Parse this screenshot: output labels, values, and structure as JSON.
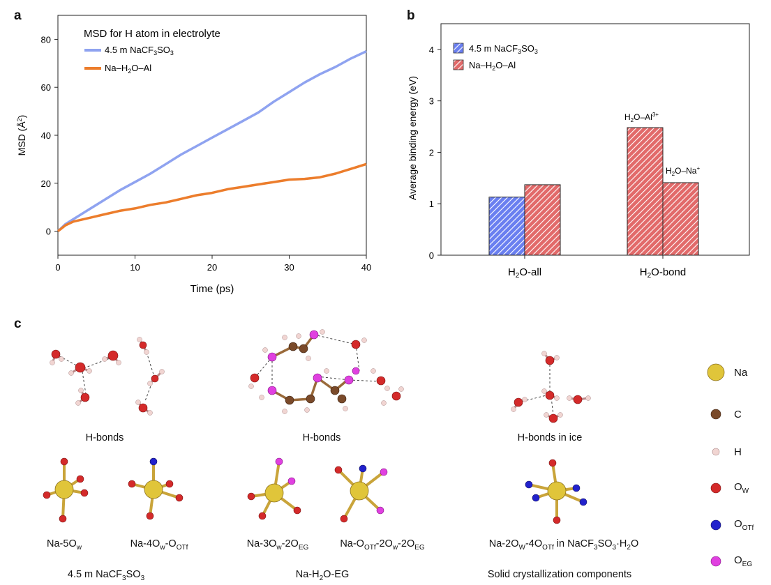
{
  "panels": {
    "a": "a",
    "b": "b",
    "c": "c"
  },
  "chart_data": [
    {
      "id": "a",
      "type": "line",
      "title": "MSD for H atom in electrolyte",
      "xlabel": "Time (ps)",
      "ylabel": "MSD (Å²)",
      "xlim": [
        0,
        40
      ],
      "ylim": [
        -10,
        90
      ],
      "xticks": [
        0,
        10,
        20,
        30,
        40
      ],
      "yticks": [
        0,
        20,
        40,
        60,
        80
      ],
      "legend": "top-left",
      "series": [
        {
          "name": "4.5 m NaCF3SO3",
          "color": "#8fa3f0",
          "x": [
            0,
            1,
            2,
            4,
            6,
            8,
            10,
            12,
            14,
            16,
            18,
            20,
            22,
            24,
            26,
            28,
            30,
            32,
            34,
            36,
            38,
            40
          ],
          "y": [
            0,
            3,
            5,
            9,
            13,
            17,
            20.5,
            24,
            28,
            32,
            35.5,
            39,
            42.5,
            46,
            49.5,
            54,
            58,
            62,
            65.5,
            68.5,
            72,
            75
          ]
        },
        {
          "name": "Na–H2O–Al",
          "color": "#ec7d2c",
          "x": [
            0,
            1,
            2,
            4,
            6,
            8,
            10,
            12,
            14,
            16,
            18,
            20,
            22,
            24,
            26,
            28,
            30,
            32,
            34,
            36,
            38,
            40
          ],
          "y": [
            0,
            2.5,
            4,
            5.5,
            7,
            8.5,
            9.5,
            11,
            12,
            13.5,
            15,
            16,
            17.5,
            18.5,
            19.5,
            20.5,
            21.5,
            21.8,
            22.5,
            24,
            26,
            28
          ]
        }
      ]
    },
    {
      "id": "b",
      "type": "bar",
      "xlabel": "",
      "ylabel": "Average binding energy (eV)",
      "ylim": [
        0,
        4.5
      ],
      "yticks": [
        0,
        1,
        2,
        3,
        4
      ],
      "categories": [
        "H2O-all",
        "H2O-bond"
      ],
      "legend": "top-left",
      "series": [
        {
          "name": "4.5 m NaCF3SO3",
          "color": "#6a7ff0",
          "values": [
            1.13,
            null
          ]
        },
        {
          "name": "Na–H2O–Al",
          "color": "#e26a6a",
          "values": [
            1.37,
            2.48
          ]
        }
      ],
      "extra_bar": {
        "category": "H2O-bond",
        "value": 1.41,
        "color": "#e26a6a"
      },
      "annotations": [
        "H2O–Al3+",
        "H2O–Na+"
      ]
    }
  ],
  "panel_c": {
    "row1_labels": [
      "H-bonds",
      "H-bonds",
      "H-bonds in ice"
    ],
    "row2_labels": [
      "Na-5Ow",
      "Na-4Ow-OOTf",
      "Na-3Ow-2OEG",
      "Na-OOTf-2Ow-2OEG",
      "Na-2OW-4OOTf in NaCF3SO3·H2O"
    ],
    "group_labels": [
      "4.5 m NaCF3SO3",
      "Na-H2O-EG",
      "Solid crystallization components"
    ],
    "legend": [
      {
        "label": "Na",
        "color": "#e0c53a"
      },
      {
        "label": "C",
        "color": "#7a4a2a"
      },
      {
        "label": "H",
        "color": "#f1d5d2"
      },
      {
        "label": "OW",
        "color": "#d42a2a"
      },
      {
        "label": "OOTf",
        "color": "#2222cc"
      },
      {
        "label": "OEG",
        "color": "#e040e0"
      }
    ]
  }
}
